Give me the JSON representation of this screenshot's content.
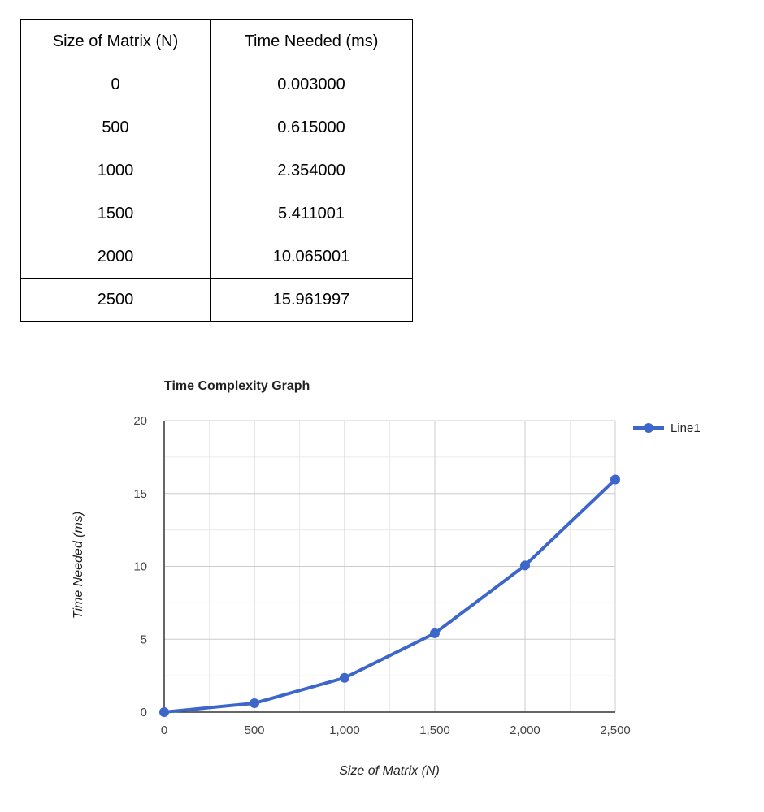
{
  "table": {
    "headers": [
      "Size of Matrix (N)",
      "Time Needed (ms)"
    ],
    "rows": [
      [
        "0",
        "0.003000"
      ],
      [
        "500",
        "0.615000"
      ],
      [
        "1000",
        "2.354000"
      ],
      [
        "1500",
        "5.411001"
      ],
      [
        "2000",
        "10.065001"
      ],
      [
        "2500",
        "15.961997"
      ]
    ]
  },
  "chart_data": {
    "type": "line",
    "title": "Time Complexity Graph",
    "xlabel": "Size of Matrix (N)",
    "ylabel": "Time Needed (ms)",
    "x": [
      0,
      500,
      1000,
      1500,
      2000,
      2500
    ],
    "series": [
      {
        "name": "Line1",
        "values": [
          0.003,
          0.615,
          2.354,
          5.411001,
          10.065001,
          15.961997
        ],
        "color": "#3c66c9"
      }
    ],
    "xlim": [
      0,
      2500
    ],
    "ylim": [
      0,
      20
    ],
    "x_ticks": [
      0,
      500,
      1000,
      1500,
      2000,
      2500
    ],
    "x_tick_labels": [
      "0",
      "500",
      "1,000",
      "1,500",
      "2,000",
      "2,500"
    ],
    "y_ticks": [
      0,
      5,
      10,
      15,
      20
    ],
    "y_tick_labels": [
      "0",
      "5",
      "10",
      "15",
      "20"
    ],
    "grid": true,
    "legend": "top-right",
    "colors": {
      "line": "#3c66c9",
      "grid_major": "#cccccc",
      "grid_minor": "#ebebeb",
      "axis": "#333333",
      "tick_text": "#444444"
    }
  }
}
